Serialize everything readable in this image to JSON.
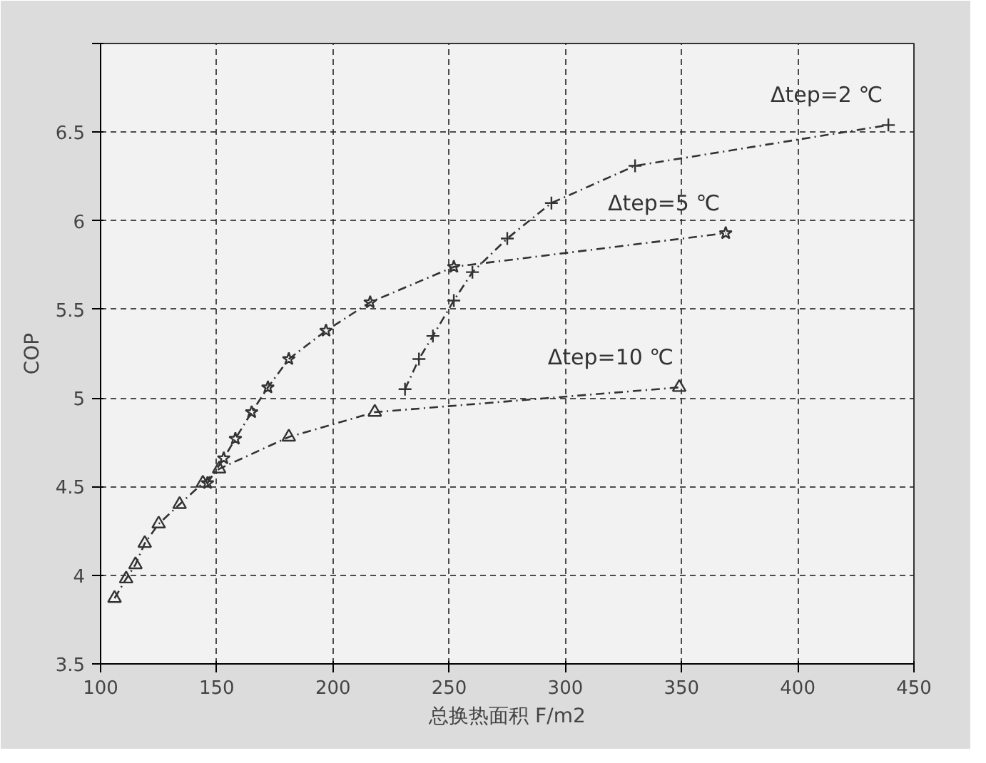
{
  "chart_data": {
    "type": "line",
    "xlabel": "总换热面积 F/m2",
    "ylabel": "COP",
    "xlim": [
      100,
      450
    ],
    "xticks": [
      100,
      150,
      200,
      250,
      300,
      350,
      400,
      450
    ],
    "ylim": [
      3.5,
      7
    ],
    "yticks": [
      3.5,
      4,
      4.5,
      5,
      5.5,
      6,
      6.5,
      {
        "value": 7,
        "label": null
      }
    ],
    "grid": true,
    "line_style": "dashed",
    "series": [
      {
        "name": "Δtep=2 ℃",
        "color": "#333333",
        "marker": "cross",
        "x": [
          231,
          237,
          243,
          252,
          260,
          275,
          294,
          330,
          439
        ],
        "values": [
          5.05,
          5.22,
          5.35,
          5.55,
          5.71,
          5.9,
          6.1,
          6.31,
          6.54
        ]
      },
      {
        "name": "Δtep=5 ℃",
        "color": "#333333",
        "marker": "star",
        "x": [
          146,
          153,
          158,
          165,
          172,
          181,
          197,
          216,
          252,
          369
        ],
        "values": [
          4.52,
          4.66,
          4.77,
          4.92,
          5.06,
          5.22,
          5.38,
          5.54,
          5.74,
          5.93
        ]
      },
      {
        "name": "Δtep=10 ℃",
        "color": "#333333",
        "marker": "triangle",
        "x": [
          106,
          111,
          115,
          119,
          125,
          134,
          144,
          151,
          181,
          218,
          349
        ],
        "values": [
          3.87,
          3.98,
          4.06,
          4.18,
          4.29,
          4.4,
          4.52,
          4.6,
          4.78,
          4.92,
          5.06
        ]
      }
    ]
  }
}
